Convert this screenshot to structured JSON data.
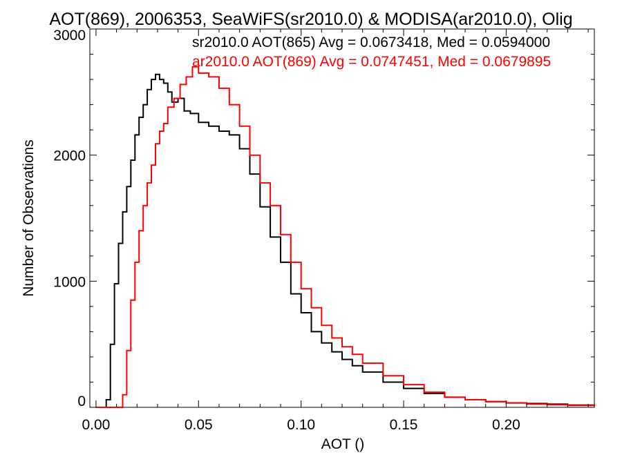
{
  "chart_data": {
    "type": "line",
    "title": "AOT(869), 2006353, SeaWiFS(sr2010.0) & MODISA(ar2010.0), Olig",
    "xlabel": "AOT ()",
    "ylabel": "Number of Observations",
    "xlim": [
      -0.003,
      0.243
    ],
    "ylim": [
      0,
      3000
    ],
    "x_ticks": [
      0.0,
      0.05,
      0.1,
      0.15,
      0.2
    ],
    "x_tick_labels": [
      "0.00",
      "0.05",
      "0.10",
      "0.15",
      "0.20"
    ],
    "y_ticks": [
      0,
      1000,
      2000,
      3000
    ],
    "y_tick_labels": [
      "0",
      "1000",
      "2000",
      "3000"
    ],
    "grid": false,
    "step": true,
    "series": [
      {
        "name": "sr2010.0 AOT(865) Avg = 0.0673418, Med = 0.0594000",
        "color": "#000000",
        "x": [
          0.0,
          0.005,
          0.007,
          0.009,
          0.011,
          0.013,
          0.015,
          0.017,
          0.019,
          0.021,
          0.023,
          0.025,
          0.027,
          0.029,
          0.031,
          0.033,
          0.035,
          0.037,
          0.04,
          0.043,
          0.046,
          0.05,
          0.055,
          0.06,
          0.065,
          0.07,
          0.075,
          0.08,
          0.085,
          0.09,
          0.095,
          0.1,
          0.105,
          0.11,
          0.115,
          0.12,
          0.125,
          0.13,
          0.14,
          0.15,
          0.16,
          0.17,
          0.18,
          0.19,
          0.2,
          0.21,
          0.22,
          0.23,
          0.243
        ],
        "y": [
          0,
          60,
          500,
          980,
          1300,
          1550,
          1750,
          1960,
          2160,
          2300,
          2400,
          2520,
          2600,
          2640,
          2600,
          2570,
          2500,
          2420,
          2450,
          2350,
          2330,
          2260,
          2230,
          2190,
          2160,
          2050,
          1850,
          1590,
          1350,
          1150,
          900,
          750,
          600,
          510,
          440,
          380,
          330,
          280,
          200,
          150,
          110,
          80,
          60,
          45,
          35,
          30,
          25,
          18,
          10
        ]
      },
      {
        "name": "ar2010.0 AOT(869) Avg = 0.0747451, Med = 0.0679895",
        "color": "#ff0000",
        "x": [
          0.0,
          0.011,
          0.013,
          0.015,
          0.017,
          0.019,
          0.021,
          0.023,
          0.025,
          0.027,
          0.029,
          0.031,
          0.033,
          0.035,
          0.038,
          0.041,
          0.044,
          0.047,
          0.05,
          0.055,
          0.06,
          0.065,
          0.07,
          0.075,
          0.08,
          0.085,
          0.09,
          0.095,
          0.1,
          0.105,
          0.11,
          0.115,
          0.12,
          0.125,
          0.13,
          0.14,
          0.15,
          0.16,
          0.17,
          0.18,
          0.19,
          0.2,
          0.21,
          0.22,
          0.23,
          0.243
        ],
        "y": [
          0,
          0,
          100,
          450,
          850,
          1150,
          1400,
          1600,
          1780,
          1920,
          2090,
          2190,
          2250,
          2380,
          2450,
          2560,
          2620,
          2700,
          2650,
          2620,
          2530,
          2400,
          2230,
          2000,
          1780,
          1600,
          1370,
          1150,
          940,
          790,
          650,
          550,
          480,
          420,
          350,
          250,
          180,
          120,
          80,
          60,
          45,
          35,
          25,
          20,
          15,
          10
        ]
      }
    ]
  }
}
